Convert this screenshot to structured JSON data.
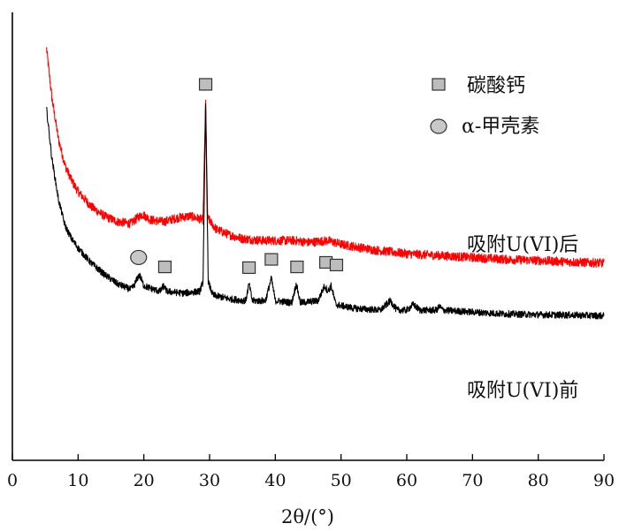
{
  "chart_data": {
    "type": "line",
    "title": "",
    "xlabel": "2θ/(°)",
    "ylabel": "",
    "xlim": [
      0,
      90
    ],
    "xticks": [
      0,
      10,
      20,
      30,
      40,
      50,
      60,
      70,
      80,
      90
    ],
    "yaxis_ticks": "none",
    "grid": false,
    "legend": {
      "placement": "top-right",
      "entries": [
        {
          "marker": "square",
          "label": "碳酸钙",
          "fill": "#bdbdbd"
        },
        {
          "marker": "ellipse",
          "label": "α-甲壳素",
          "fill": "#c8c8c8"
        }
      ]
    },
    "series": [
      {
        "name": "吸附U(VI)后",
        "color": "#ff0000",
        "noise": 0.012,
        "points": [
          [
            5.2,
            1.0
          ],
          [
            6,
            0.87
          ],
          [
            7,
            0.76
          ],
          [
            8,
            0.69
          ],
          [
            9,
            0.65
          ],
          [
            10,
            0.62
          ],
          [
            12,
            0.58
          ],
          [
            14,
            0.555
          ],
          [
            16,
            0.54
          ],
          [
            18,
            0.535
          ],
          [
            19,
            0.55
          ],
          [
            19.8,
            0.56
          ],
          [
            21,
            0.545
          ],
          [
            23,
            0.54
          ],
          [
            25,
            0.55
          ],
          [
            27,
            0.555
          ],
          [
            29,
            0.545
          ],
          [
            29.4,
            0.86
          ],
          [
            29.7,
            0.55
          ],
          [
            31,
            0.52
          ],
          [
            33,
            0.505
          ],
          [
            35,
            0.495
          ],
          [
            38,
            0.49
          ],
          [
            40,
            0.49
          ],
          [
            43,
            0.49
          ],
          [
            45,
            0.485
          ],
          [
            48,
            0.49
          ],
          [
            50,
            0.48
          ],
          [
            55,
            0.465
          ],
          [
            60,
            0.455
          ],
          [
            65,
            0.45
          ],
          [
            70,
            0.445
          ],
          [
            75,
            0.44
          ],
          [
            80,
            0.437
          ],
          [
            85,
            0.433
          ],
          [
            90,
            0.43
          ]
        ]
      },
      {
        "name": "吸附U(VI)前",
        "color": "#000000",
        "noise": 0.009,
        "points": [
          [
            5.2,
            0.84
          ],
          [
            6,
            0.71
          ],
          [
            7,
            0.6
          ],
          [
            8,
            0.53
          ],
          [
            9,
            0.495
          ],
          [
            10,
            0.47
          ],
          [
            12,
            0.43
          ],
          [
            14,
            0.4
          ],
          [
            16,
            0.375
          ],
          [
            18,
            0.36
          ],
          [
            18.5,
            0.37
          ],
          [
            19.3,
            0.4
          ],
          [
            20,
            0.37
          ],
          [
            21.5,
            0.36
          ],
          [
            22.5,
            0.355
          ],
          [
            23,
            0.37
          ],
          [
            23.5,
            0.355
          ],
          [
            26,
            0.35
          ],
          [
            28.5,
            0.355
          ],
          [
            29,
            0.38
          ],
          [
            29.4,
            0.85
          ],
          [
            29.8,
            0.38
          ],
          [
            30.5,
            0.345
          ],
          [
            33,
            0.335
          ],
          [
            35.5,
            0.33
          ],
          [
            36,
            0.375
          ],
          [
            36.5,
            0.33
          ],
          [
            38.5,
            0.33
          ],
          [
            39.4,
            0.39
          ],
          [
            40,
            0.33
          ],
          [
            42.5,
            0.325
          ],
          [
            43.2,
            0.375
          ],
          [
            43.8,
            0.325
          ],
          [
            46.5,
            0.33
          ],
          [
            47.5,
            0.37
          ],
          [
            48,
            0.355
          ],
          [
            48.5,
            0.37
          ],
          [
            49.2,
            0.32
          ],
          [
            52,
            0.31
          ],
          [
            56,
            0.305
          ],
          [
            57.5,
            0.33
          ],
          [
            58.5,
            0.305
          ],
          [
            60,
            0.305
          ],
          [
            61,
            0.32
          ],
          [
            62,
            0.305
          ],
          [
            64.5,
            0.305
          ],
          [
            65,
            0.315
          ],
          [
            65.5,
            0.305
          ],
          [
            70,
            0.3
          ],
          [
            75,
            0.295
          ],
          [
            80,
            0.293
          ],
          [
            85,
            0.292
          ],
          [
            90,
            0.29
          ]
        ]
      }
    ],
    "markers": [
      {
        "type": "square",
        "x": 29.4,
        "y": 0.905
      },
      {
        "type": "ellipse",
        "x": 19.2,
        "y": 0.445
      },
      {
        "type": "square",
        "x": 23.2,
        "y": 0.42
      },
      {
        "type": "square",
        "x": 36.0,
        "y": 0.418
      },
      {
        "type": "square",
        "x": 39.4,
        "y": 0.44
      },
      {
        "type": "square",
        "x": 43.3,
        "y": 0.42
      },
      {
        "type": "square",
        "x": 47.7,
        "y": 0.432
      },
      {
        "type": "square",
        "x": 49.3,
        "y": 0.425
      }
    ]
  }
}
